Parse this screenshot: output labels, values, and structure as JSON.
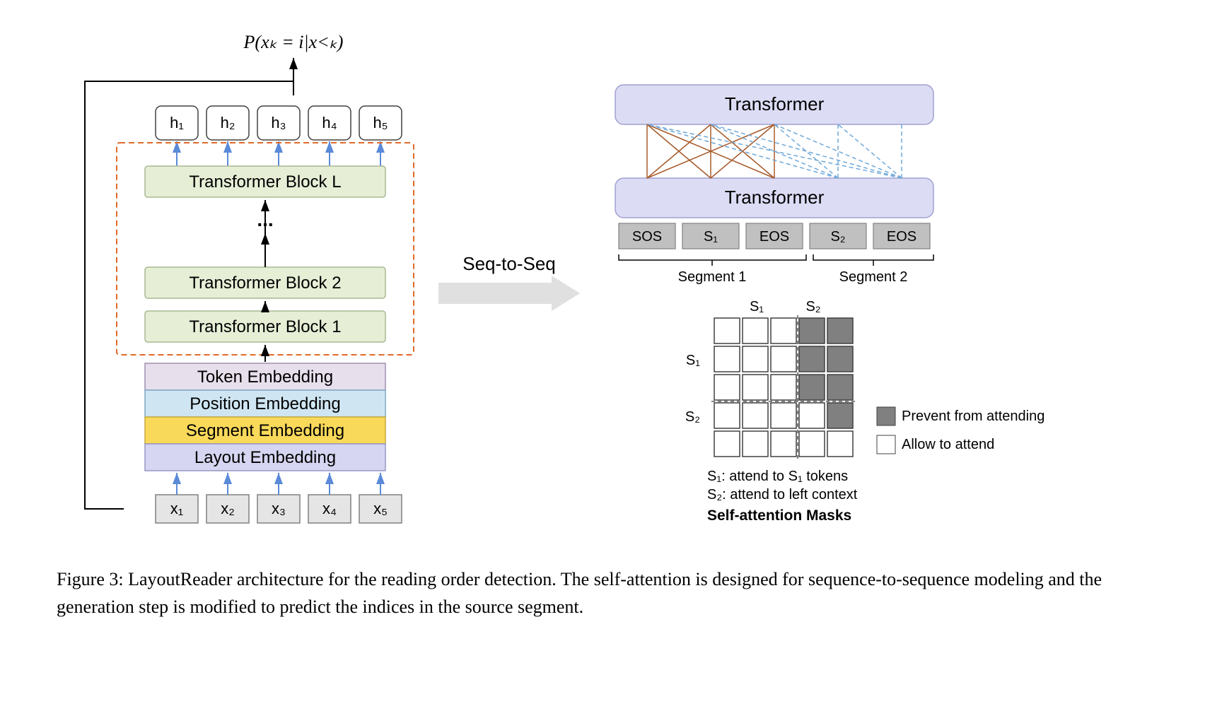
{
  "left": {
    "prob_label": "P(xₖ = i|x<ₖ)",
    "outputs": [
      "h₁",
      "h₂",
      "h₃",
      "h₄",
      "h₅"
    ],
    "inputs": [
      "x₁",
      "x₂",
      "x₃",
      "x₄",
      "x₅"
    ],
    "blocks": {
      "top": "Transformer Block L",
      "mid": "Transformer Block 2",
      "bot": "Transformer Block 1",
      "ellipsis": "..."
    },
    "embeddings": [
      {
        "label": "Token Embedding",
        "fill": "#e8dfed",
        "stroke": "#a090b0"
      },
      {
        "label": "Position Embedding",
        "fill": "#cfe6f2",
        "stroke": "#7fa8c0"
      },
      {
        "label": "Segment Embedding",
        "fill": "#f9d95a",
        "stroke": "#c9a93a"
      },
      {
        "label": "Layout Embedding",
        "fill": "#d6d6f2",
        "stroke": "#9696c8"
      }
    ],
    "colors": {
      "transformer_fill": "#e6eed6",
      "transformer_stroke": "#a8b890",
      "dash_stroke": "#e06a2a",
      "io_fill": "#e5e5e5",
      "io_stroke": "#808080",
      "h_fill": "#ffffff",
      "h_stroke": "#404040",
      "arrow_blue": "#5a8ad8",
      "arrow_black": "#000000"
    }
  },
  "center": {
    "label": "Seq-to-Seq",
    "arrow_color": "#e0e0e0"
  },
  "right": {
    "transformer_label": "Transformer",
    "transformer_fill": "#dcdcf5",
    "transformer_stroke": "#a0a0d0",
    "tokens": [
      "SOS",
      "S₁",
      "EOS",
      "S₂",
      "EOS"
    ],
    "token_fill": "#c0c0c0",
    "token_stroke": "#808080",
    "segments": [
      "Segment 1",
      "Segment 2"
    ],
    "line_solid": "#a85a2a",
    "line_dash": "#6fa8d8",
    "mask": {
      "header_cols": [
        "S₁",
        "S₂"
      ],
      "header_rows": [
        "S₁",
        "S₂"
      ],
      "grid": [
        [
          0,
          0,
          0,
          1,
          1
        ],
        [
          0,
          0,
          0,
          1,
          1
        ],
        [
          0,
          0,
          0,
          1,
          1
        ],
        [
          0,
          0,
          0,
          0,
          1
        ],
        [
          0,
          0,
          0,
          0,
          0
        ]
      ],
      "fill_on": "#808080",
      "fill_off": "#ffffff",
      "stroke": "#404040",
      "legend_prevent": "Prevent from attending",
      "legend_allow": "Allow to attend",
      "note1": "S₁: attend to S₁ tokens",
      "note2": "S₂: attend to left context",
      "title": "Self-attention Masks"
    }
  },
  "caption": "Figure 3: LayoutReader architecture for the reading order detection. The self-attention is designed for sequence-to-sequence modeling and the generation step is modified to predict the indices in the source segment."
}
